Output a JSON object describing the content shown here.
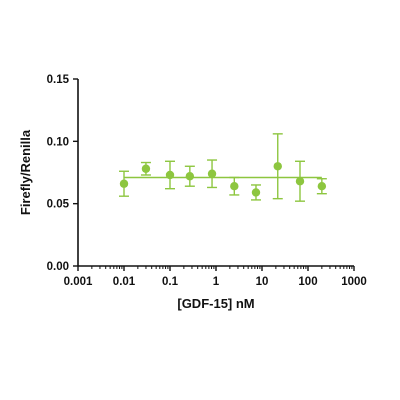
{
  "chart_data": {
    "type": "scatter",
    "title": "",
    "xlabel": "[GDF-15] nM",
    "ylabel": "Firefly/Renilla",
    "x_scale": "log",
    "xlim": [
      0.001,
      1000
    ],
    "ylim": [
      0.0,
      0.15
    ],
    "x_ticks": [
      0.001,
      0.01,
      0.1,
      1,
      10,
      100,
      1000
    ],
    "x_tick_labels": [
      "0.001",
      "0.01",
      "0.1",
      "1",
      "10",
      "100",
      "1000"
    ],
    "y_ticks": [
      0.0,
      0.05,
      0.1,
      0.15
    ],
    "y_tick_labels": [
      "0.00",
      "0.05",
      "0.10",
      "0.15"
    ],
    "grid": false,
    "color": "#8dc63f",
    "series": [
      {
        "x": [
          0.01,
          0.03,
          0.1,
          0.27,
          0.82,
          2.5,
          7.4,
          22,
          67,
          200
        ],
        "y": [
          0.066,
          0.078,
          0.073,
          0.072,
          0.074,
          0.064,
          0.059,
          0.08,
          0.068,
          0.064
        ],
        "error": [
          0.01,
          0.005,
          0.011,
          0.008,
          0.011,
          0.007,
          0.006,
          0.026,
          0.016,
          0.006
        ]
      }
    ],
    "fit_line": {
      "y": 0.071,
      "x_range": [
        0.01,
        200
      ]
    }
  }
}
